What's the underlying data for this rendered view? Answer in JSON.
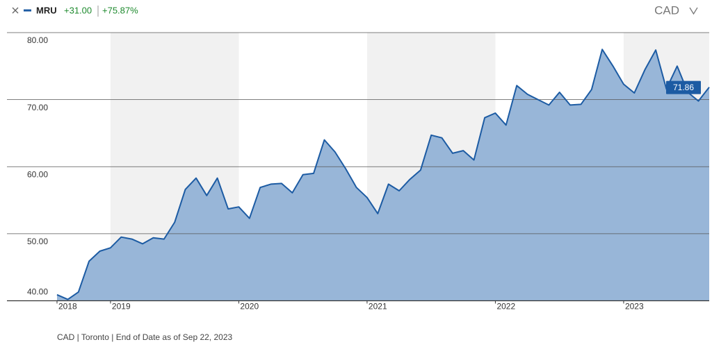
{
  "chart_data": {
    "type": "area",
    "series": [
      {
        "name": "MRU",
        "color": "#1c5ba3",
        "fill": "#92b2d6",
        "values": [
          40.9,
          40.2,
          41.3,
          45.9,
          47.4,
          47.9,
          49.5,
          49.2,
          48.5,
          49.4,
          49.2,
          51.7,
          56.6,
          58.3,
          55.7,
          58.3,
          53.7,
          54.0,
          52.3,
          56.9,
          57.4,
          57.5,
          56.1,
          58.8,
          59.0,
          64.0,
          62.2,
          59.7,
          56.9,
          55.4,
          53.0,
          57.4,
          56.4,
          58.1,
          59.5,
          64.7,
          64.3,
          62.0,
          62.4,
          61.0,
          67.3,
          68.0,
          66.2,
          72.1,
          70.8,
          70.0,
          69.2,
          71.1,
          69.2,
          69.3,
          71.5,
          77.5,
          75.0,
          72.3,
          71.0,
          74.5,
          77.4,
          71.6,
          75.0,
          71.1,
          69.8,
          71.86
        ]
      }
    ],
    "change": "+31.00",
    "change_percent": "+75.87%",
    "currency": "CAD",
    "footnote": "CAD | Toronto | End of Date as of Sep 22, 2023",
    "x": [
      2018.583,
      2018.667,
      2018.75,
      2018.833,
      2018.917,
      2019,
      2019.083,
      2019.167,
      2019.25,
      2019.333,
      2019.417,
      2019.5,
      2019.583,
      2019.667,
      2019.75,
      2019.833,
      2019.917,
      2020,
      2020.083,
      2020.167,
      2020.25,
      2020.333,
      2020.417,
      2020.5,
      2020.583,
      2020.667,
      2020.75,
      2020.833,
      2020.917,
      2021,
      2021.083,
      2021.167,
      2021.25,
      2021.333,
      2021.417,
      2021.5,
      2021.583,
      2021.667,
      2021.75,
      2021.833,
      2021.917,
      2022,
      2022.083,
      2022.167,
      2022.25,
      2022.333,
      2022.417,
      2022.5,
      2022.583,
      2022.667,
      2022.75,
      2022.833,
      2022.917,
      2023,
      2023.083,
      2023.167,
      2023.25,
      2023.333,
      2023.417,
      2023.5,
      2023.583,
      2023.667
    ],
    "xlim": [
      2018.583,
      2023.667
    ],
    "xticks": [
      {
        "value": 2018.583,
        "label": "2018"
      },
      2019,
      2020,
      2021,
      2022,
      2023
    ],
    "ylim": [
      40,
      80
    ],
    "yticks": [
      {
        "value": 40,
        "label": "40.00"
      },
      {
        "value": 50,
        "label": "50.00"
      },
      {
        "value": 60,
        "label": "60.00"
      },
      {
        "value": 70,
        "label": "70.00"
      },
      {
        "value": 80,
        "label": "80.00"
      }
    ],
    "grid": true,
    "positive_color": "#1e8a2e",
    "band_color": "#f1f1f1"
  }
}
